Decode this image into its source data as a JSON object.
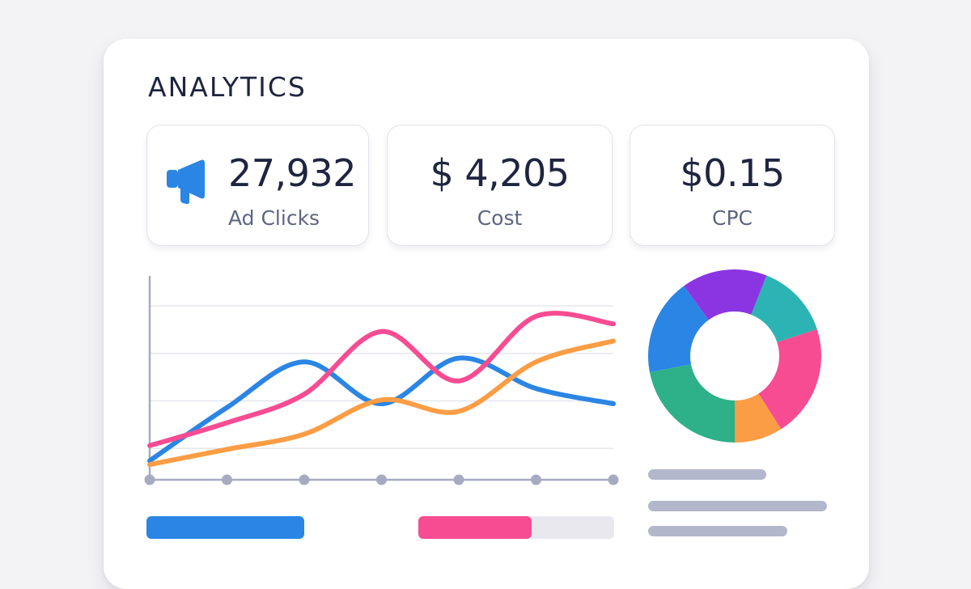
{
  "header": {
    "title": "ANALYTICS"
  },
  "stats": [
    {
      "value": "27,932",
      "label": "Ad Clicks",
      "icon": "megaphone-icon"
    },
    {
      "value": "$ 4,205",
      "label": "Cost"
    },
    {
      "value": "$0.15",
      "label": "CPC"
    }
  ],
  "colors": {
    "blue": "#2b85e4",
    "pink": "#f74c92",
    "orange": "#fb9d45",
    "purple": "#8b35e2",
    "teal": "#2cb4b4",
    "green": "#2eb089",
    "axis": "#a6abc1"
  },
  "chart_data": [
    {
      "type": "line",
      "x": [
        1,
        2,
        3,
        4,
        5,
        6,
        7
      ],
      "ylim": [
        0,
        100
      ],
      "grid": true,
      "series": [
        {
          "color": "#2b85e4",
          "values": [
            10,
            38,
            62,
            40,
            64,
            48,
            40
          ]
        },
        {
          "color": "#f74c92",
          "values": [
            18,
            30,
            45,
            78,
            52,
            86,
            82
          ]
        },
        {
          "color": "#fb9d45",
          "values": [
            8,
            16,
            24,
            42,
            36,
            62,
            73
          ]
        }
      ]
    },
    {
      "type": "pie",
      "donut": true,
      "slices": [
        {
          "value": 14,
          "color": "#2cb4b4"
        },
        {
          "value": 21,
          "color": "#f74c92"
        },
        {
          "value": 9,
          "color": "#fb9d45"
        },
        {
          "value": 22,
          "color": "#2eb089"
        },
        {
          "value": 18,
          "color": "#2b85e4"
        },
        {
          "value": 16,
          "color": "#8b35e2"
        }
      ]
    }
  ],
  "progress": [
    {
      "fill": 1.0,
      "color": "#2b85e4"
    },
    {
      "fill": 0.58,
      "color": "#f74c92"
    }
  ]
}
